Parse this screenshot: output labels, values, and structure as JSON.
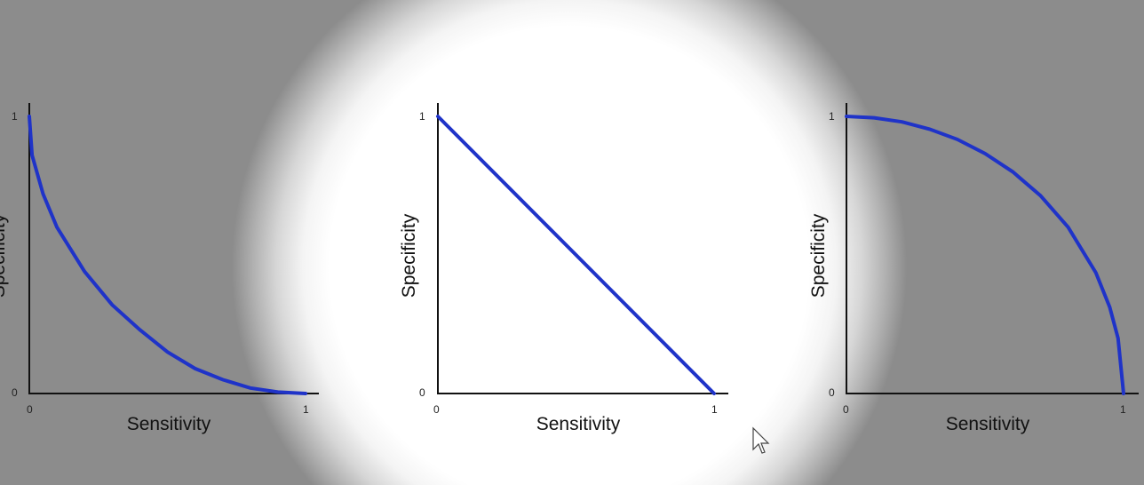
{
  "chart_data": [
    {
      "type": "line",
      "xlabel": "Sensitivity",
      "ylabel": "Specificity",
      "xlim": [
        0,
        1
      ],
      "ylim": [
        0,
        1
      ],
      "xticks": [
        "0",
        "1"
      ],
      "yticks": [
        "0",
        "1"
      ],
      "grid": false,
      "curve": "concave",
      "series": [
        {
          "color": "#1f33c8",
          "x": [
            0,
            0.01,
            0.05,
            0.1,
            0.2,
            0.3,
            0.4,
            0.5,
            0.6,
            0.7,
            0.8,
            0.9,
            1.0
          ],
          "y": [
            1.0,
            0.86,
            0.72,
            0.6,
            0.44,
            0.32,
            0.23,
            0.15,
            0.09,
            0.05,
            0.02,
            0.005,
            0.0
          ]
        }
      ]
    },
    {
      "type": "line",
      "xlabel": "Sensitivity",
      "ylabel": "Specificity",
      "xlim": [
        0,
        1
      ],
      "ylim": [
        0,
        1
      ],
      "xticks": [
        "0",
        "1"
      ],
      "yticks": [
        "0",
        "1"
      ],
      "grid": false,
      "curve": "linear",
      "series": [
        {
          "color": "#1f33c8",
          "x": [
            0,
            1
          ],
          "y": [
            1,
            0
          ]
        }
      ]
    },
    {
      "type": "line",
      "xlabel": "Sensitivity",
      "ylabel": "Specificity",
      "xlim": [
        0,
        1
      ],
      "ylim": [
        0,
        1
      ],
      "xticks": [
        "0",
        "1"
      ],
      "yticks": [
        "0",
        "1"
      ],
      "grid": false,
      "curve": "convex",
      "series": [
        {
          "color": "#1f33c8",
          "x": [
            0,
            0.1,
            0.2,
            0.3,
            0.4,
            0.5,
            0.6,
            0.7,
            0.8,
            0.9,
            0.95,
            0.98,
            1.0
          ],
          "y": [
            1.0,
            0.995,
            0.98,
            0.954,
            0.917,
            0.866,
            0.8,
            0.714,
            0.6,
            0.436,
            0.312,
            0.199,
            0.0
          ]
        }
      ]
    }
  ],
  "icons": {
    "cursor": "mouse-pointer-icon"
  }
}
